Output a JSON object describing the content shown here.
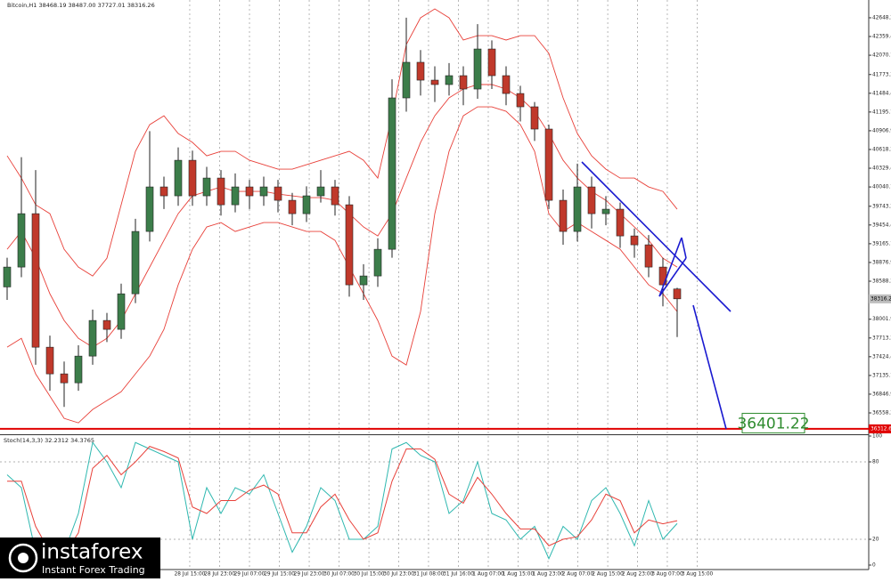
{
  "header": "Bitcoin,H1 38468.19 38487.00 37727.01 38316.26",
  "watermark": {
    "brand": "instaforex",
    "tagline": "Instant Forex Trading"
  },
  "chart_data": [
    {
      "type": "candlestick",
      "ylim": [
        36229,
        42922
      ],
      "yticks": [
        {
          "value": 42648.2,
          "label": "42648.20"
        },
        42359.45,
        {
          "value": 42070.7,
          "label": "42070.70"
        },
        {
          "value": 41773.2,
          "label": "41773.20"
        },
        41484.45,
        {
          "value": 41195.7,
          "label": "41195.70"
        },
        40906.95,
        {
          "value": 40618.2,
          "label": "40618.20"
        },
        40329.45,
        {
          "value": 40040.7,
          "label": "40040.70"
        },
        {
          "value": 39743.2,
          "label": "39743.20"
        },
        39454.45,
        {
          "value": 39165.7,
          "label": "39165.70"
        },
        38876.95,
        {
          "value": 38588.2,
          "label": "38588.20"
        },
        38001.95,
        {
          "value": 37713.2,
          "label": "37713.20"
        },
        37424.45,
        {
          "value": 37135.7,
          "label": "37135.70"
        },
        36846.95,
        {
          "value": 36558.2,
          "label": "36558.20"
        }
      ],
      "xticks": [
        {
          "value": 12.81,
          "label": "28 Jul 15:00"
        },
        {
          "value": 14.91,
          "label": "28 Jul 23:00"
        },
        {
          "value": 17.0,
          "label": "29 Jul 07:00"
        },
        {
          "value": 19.1,
          "label": "29 Jul 15:00"
        },
        {
          "value": 21.19,
          "label": "29 Jul 23:00"
        },
        {
          "value": 23.28,
          "label": "30 Jul 07:00"
        },
        {
          "value": 25.38,
          "label": "30 Jul 15:00"
        },
        {
          "value": 27.47,
          "label": "30 Jul 23:00"
        },
        {
          "value": 29.56,
          "label": "31 Jul 08:00"
        },
        {
          "value": 31.66,
          "label": "31 Jul 16:00"
        },
        {
          "value": 33.75,
          "label": "1 Aug 07:00"
        },
        {
          "value": 35.84,
          "label": "1 Aug 15:00"
        },
        {
          "value": 37.94,
          "label": "1 Aug 23:00"
        },
        {
          "value": 40.03,
          "label": "2 Aug 07:00"
        },
        {
          "value": 42.13,
          "label": "2 Aug 15:00"
        },
        {
          "value": 44.22,
          "label": "2 Aug 23:00"
        },
        {
          "value": 46.31,
          "label": "3 Aug 07:00"
        },
        {
          "value": 48.41,
          "label": "3 Aug 15:00"
        }
      ],
      "open": [
        38500,
        38806,
        39629,
        37571,
        37160,
        37022,
        37434,
        37983,
        37846,
        38394,
        39355,
        40041,
        39904,
        40452,
        39904,
        40178,
        39766,
        40041,
        39904,
        40041,
        39835,
        39629,
        39904,
        40041,
        39766,
        38532,
        38669,
        39080,
        41413,
        41962,
        41687,
        41619,
        41756,
        41550,
        42167,
        41756,
        41481,
        41276,
        40933,
        39835,
        39355,
        40041,
        39629,
        39698,
        39286,
        39149,
        38806,
        38468.19
      ],
      "high": [
        38950,
        40500,
        40300,
        37750,
        37350,
        37600,
        38150,
        38100,
        38550,
        39550,
        40900,
        40200,
        40650,
        40600,
        40350,
        40300,
        40250,
        40150,
        40200,
        40150,
        39950,
        40050,
        40300,
        40150,
        39900,
        38850,
        39250,
        41700,
        42650,
        42150,
        41900,
        41950,
        41900,
        42550,
        42300,
        41900,
        41600,
        41350,
        41000,
        40000,
        40400,
        40200,
        39900,
        39800,
        39400,
        39300,
        38950,
        38487
      ],
      "low": [
        38300,
        38650,
        37300,
        36900,
        36650,
        36900,
        37300,
        37650,
        37700,
        38250,
        39200,
        39700,
        39750,
        39750,
        39750,
        39600,
        39650,
        39700,
        39750,
        39650,
        39450,
        39500,
        39800,
        39600,
        38350,
        38300,
        38500,
        38950,
        41200,
        41450,
        41350,
        41450,
        41300,
        41400,
        41550,
        41300,
        41050,
        40750,
        39700,
        39150,
        39200,
        39400,
        39450,
        39100,
        38950,
        38650,
        38200,
        37727.01
      ],
      "close": [
        38806,
        39629,
        37571,
        37160,
        37022,
        37434,
        37983,
        37846,
        38394,
        39355,
        40041,
        39904,
        40452,
        39904,
        40178,
        39766,
        40041,
        39904,
        40041,
        39835,
        39629,
        39904,
        40041,
        39766,
        38532,
        38669,
        39080,
        41413,
        41962,
        41687,
        41619,
        41756,
        41550,
        42167,
        41756,
        41481,
        41276,
        40933,
        39835,
        39355,
        40041,
        39629,
        39698,
        39286,
        39149,
        38806,
        38532,
        38316.26
      ],
      "bands": {
        "upper": [
          40521,
          40178,
          39766,
          39629,
          39080,
          38806,
          38669,
          38943,
          39766,
          40590,
          41001,
          41138,
          40864,
          40727,
          40521,
          40590,
          40590,
          40452,
          40384,
          40315,
          40315,
          40384,
          40452,
          40521,
          40590,
          40452,
          40178,
          41138,
          42236,
          42648,
          42785,
          42648,
          42305,
          42373,
          42373,
          42305,
          42373,
          42373,
          42099,
          41413,
          40864,
          40521,
          40315,
          40178,
          40178,
          40041,
          39972,
          39698
        ],
        "middle": [
          39080,
          39355,
          38943,
          38394,
          37983,
          37708,
          37571,
          37708,
          37983,
          38394,
          38806,
          39218,
          39629,
          39904,
          39972,
          40041,
          39972,
          39972,
          39972,
          39931,
          39904,
          39876,
          39876,
          39835,
          39629,
          39424,
          39286,
          39629,
          40178,
          40727,
          41138,
          41413,
          41550,
          41619,
          41619,
          41550,
          41413,
          41207,
          40864,
          40452,
          40178,
          39972,
          39835,
          39629,
          39424,
          39218,
          38943,
          38806
        ],
        "lower": [
          37571,
          37708,
          37160,
          36817,
          36474,
          36405,
          36611,
          36748,
          36885,
          37160,
          37434,
          37846,
          38532,
          39080,
          39424,
          39492,
          39355,
          39424,
          39492,
          39492,
          39424,
          39355,
          39355,
          39218,
          38806,
          38394,
          37983,
          37434,
          37297,
          38120,
          39629,
          40590,
          41138,
          41276,
          41276,
          41207,
          41001,
          40590,
          39629,
          39355,
          39492,
          39355,
          39218,
          39080,
          38806,
          38532,
          38394,
          38120
        ]
      },
      "band_color": "#e8413a",
      "up_color": "#3c7d4a",
      "down_color": "#c0392b",
      "last_price": 38316.26,
      "level": 36312.63,
      "level_color": "#e00000",
      "target": 36401.22,
      "target_color": "#2e8b2e",
      "grid": true
    },
    {
      "type": "line",
      "title": "Stoch(14,3,3) 32.2312 34.3765",
      "ylim": [
        0,
        100
      ],
      "yticks": [
        100,
        80,
        20,
        0
      ],
      "levels": [
        80,
        20
      ],
      "series": [
        {
          "color": "#2fb8b0",
          "values": [
            70,
            60,
            10,
            5,
            10,
            40,
            95,
            80,
            60,
            95,
            90,
            85,
            80,
            20,
            60,
            40,
            60,
            55,
            70,
            40,
            10,
            30,
            60,
            50,
            20,
            20,
            30,
            90,
            95,
            85,
            80,
            40,
            50,
            80,
            40,
            35,
            20,
            30,
            5,
            30,
            20,
            50,
            60,
            40,
            15,
            50,
            20,
            32.2312
          ]
        },
        {
          "color": "#e8413a",
          "values": [
            65,
            65,
            30,
            10,
            8,
            25,
            75,
            85,
            70,
            80,
            92,
            88,
            83,
            45,
            40,
            50,
            50,
            58,
            62,
            55,
            25,
            25,
            45,
            55,
            35,
            20,
            25,
            65,
            90,
            90,
            82,
            55,
            48,
            68,
            55,
            40,
            28,
            28,
            15,
            20,
            22,
            35,
            55,
            50,
            25,
            35,
            32,
            34.3765
          ]
        }
      ]
    }
  ]
}
